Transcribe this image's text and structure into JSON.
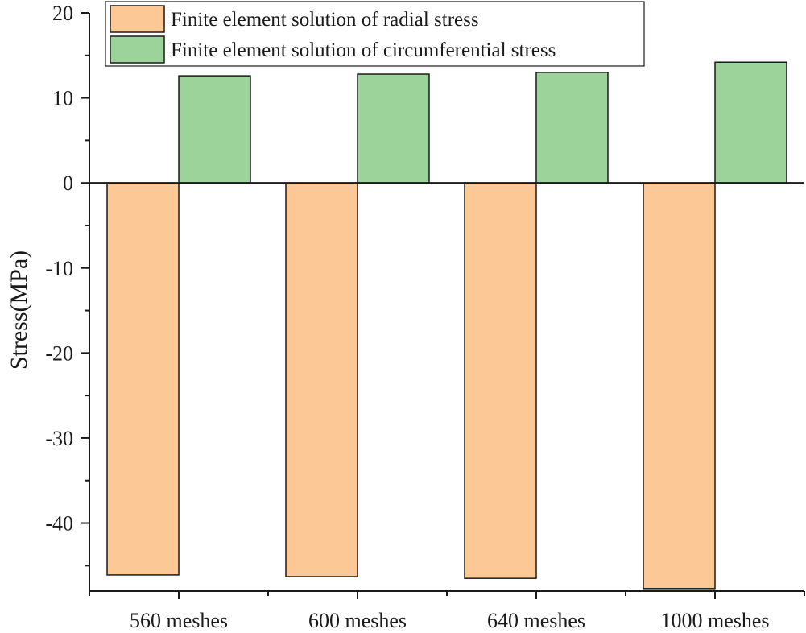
{
  "chart_data": {
    "type": "bar",
    "categories": [
      "560 meshes",
      "600 meshes",
      "640 meshes",
      "1000 meshes"
    ],
    "series": [
      {
        "name": "Finite element solution of radial stress",
        "color": "#FCC896",
        "values": [
          -46.1,
          -46.3,
          -46.5,
          -47.7
        ]
      },
      {
        "name": "Finite element solution of circumferential stress",
        "color": "#9CD39A",
        "values": [
          12.6,
          12.8,
          13.0,
          14.2
        ]
      }
    ],
    "xlabel": "",
    "ylabel": "Stress(MPa)",
    "ylim": [
      -48,
      20
    ],
    "yticks": [
      20,
      10,
      0,
      -10,
      -20,
      -30,
      -40
    ],
    "ytick_labels": [
      "20",
      "10",
      "0",
      "-10",
      "-20",
      "-30",
      "-40"
    ],
    "grid": false,
    "legend_position": "top-center"
  }
}
